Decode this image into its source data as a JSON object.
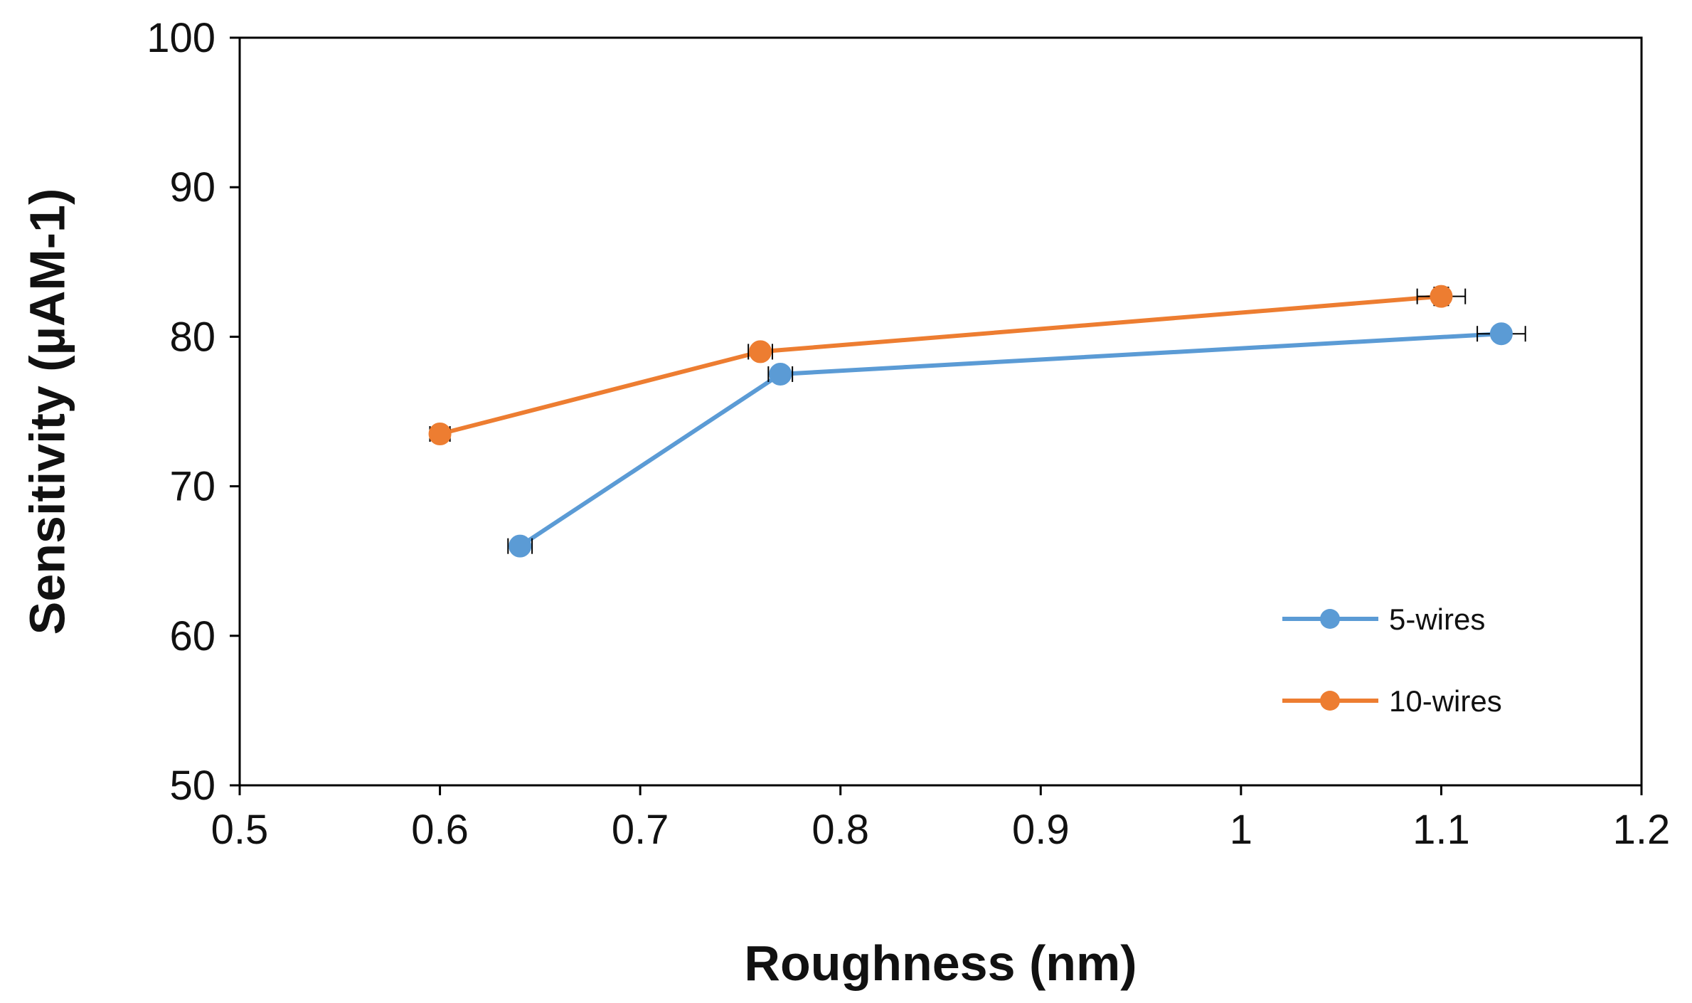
{
  "chart_data": {
    "type": "line",
    "title": "",
    "xlabel": "Roughness (nm)",
    "ylabel": "Sensitivity (µAM-1)",
    "xlim": [
      0.5,
      1.2
    ],
    "ylim": [
      50,
      100
    ],
    "xticks": [
      0.5,
      0.6,
      0.7,
      0.8,
      0.9,
      1,
      1.1,
      1.2
    ],
    "xtick_labels": [
      "0.5",
      "0.6",
      "0.7",
      "0.8",
      "0.9",
      "1",
      "1.1",
      "1.2"
    ],
    "yticks": [
      50,
      60,
      70,
      80,
      90,
      100
    ],
    "ytick_labels": [
      "50",
      "60",
      "70",
      "80",
      "90",
      "100"
    ],
    "grid": false,
    "legend_position": "right-bottom",
    "series": [
      {
        "name": "5-wires",
        "color": "#5B9BD5",
        "x": [
          0.64,
          0.77,
          1.13
        ],
        "y": [
          66,
          77.5,
          80.2
        ],
        "x_error": [
          0.006,
          0.006,
          0.012
        ],
        "y_error": [
          0.4,
          0.5,
          0.5
        ]
      },
      {
        "name": "10-wires",
        "color": "#ED7D31",
        "x": [
          0.6,
          0.76,
          1.1
        ],
        "y": [
          73.5,
          79,
          82.7
        ],
        "x_error": [
          0.005,
          0.006,
          0.012
        ],
        "y_error": [
          0.4,
          0.5,
          0.6
        ]
      }
    ]
  }
}
